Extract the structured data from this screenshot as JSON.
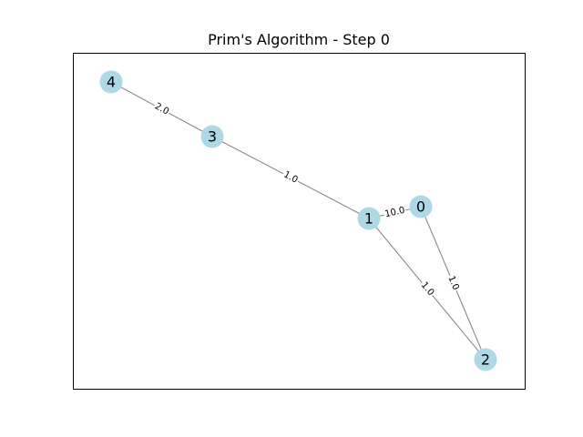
{
  "title": "Prim's Algorithm - Step 0",
  "colors": {
    "node_fill": "#add8e6",
    "edge_stroke": "#808080",
    "frame_stroke": "#000000",
    "background": "#ffffff"
  },
  "nodes": [
    {
      "id": "0",
      "label": "0"
    },
    {
      "id": "1",
      "label": "1"
    },
    {
      "id": "2",
      "label": "2"
    },
    {
      "id": "3",
      "label": "3"
    },
    {
      "id": "4",
      "label": "4"
    }
  ],
  "edges": [
    {
      "source": "4",
      "target": "3",
      "weight": "2.0"
    },
    {
      "source": "3",
      "target": "1",
      "weight": "1.0"
    },
    {
      "source": "1",
      "target": "0",
      "weight": "10.0"
    },
    {
      "source": "1",
      "target": "2",
      "weight": "1.0"
    },
    {
      "source": "0",
      "target": "2",
      "weight": "1.0"
    }
  ]
}
